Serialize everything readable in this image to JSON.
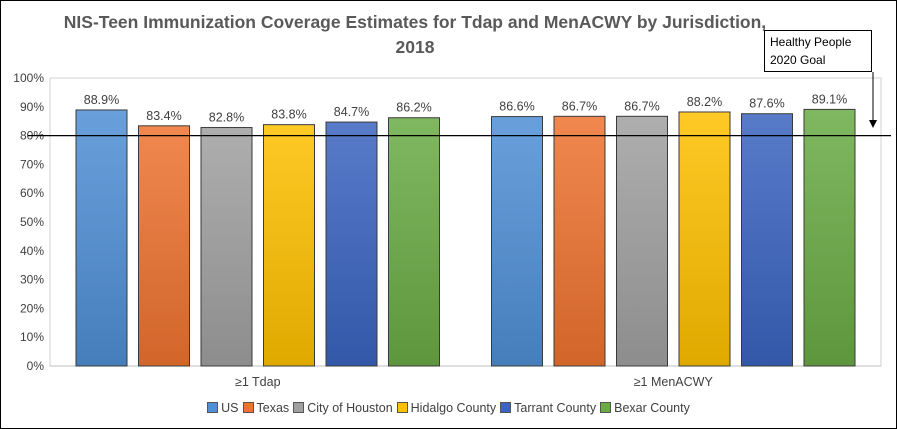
{
  "chart_data": {
    "type": "bar",
    "title": "NIS-Teen Immunization Coverage Estimates for Tdap and MenACWY by Jurisdiction,  2018",
    "categories": [
      "≥1 Tdap",
      "≥1 MenACWY"
    ],
    "series": [
      {
        "name": "US",
        "values": [
          88.9,
          86.6
        ],
        "color": "#4f8fd6"
      },
      {
        "name": "Texas",
        "values": [
          83.4,
          86.7
        ],
        "color": "#ed7330"
      },
      {
        "name": "City of Houston",
        "values": [
          82.8,
          86.7
        ],
        "color": "#a0a0a0"
      },
      {
        "name": "Hidalgo County",
        "values": [
          83.8,
          88.2
        ],
        "color": "#ffc000"
      },
      {
        "name": "Tarrant County",
        "values": [
          84.7,
          87.6
        ],
        "color": "#3a64c0"
      },
      {
        "name": "Bexar County",
        "values": [
          86.2,
          89.1
        ],
        "color": "#6aab45"
      }
    ],
    "data_labels": [
      [
        "88.9%",
        "83.4%",
        "82.8%",
        "83.8%",
        "84.7%",
        "86.2%"
      ],
      [
        "86.6%",
        "86.7%",
        "86.7%",
        "88.2%",
        "87.6%",
        "89.1%"
      ]
    ],
    "yticks": [
      "0%",
      "10%",
      "20%",
      "30%",
      "40%",
      "50%",
      "60%",
      "70%",
      "80%",
      "90%",
      "100%"
    ],
    "ylim": [
      0,
      100
    ],
    "reference_line": {
      "value": 80,
      "label": "Healthy People 2020 Goal"
    },
    "legend_position": "bottom",
    "grid": false
  }
}
